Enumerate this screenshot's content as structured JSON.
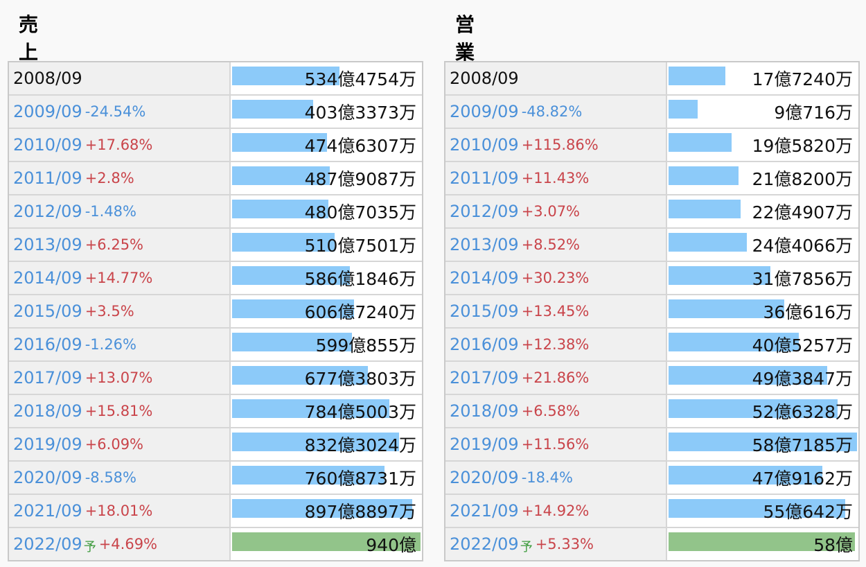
{
  "panels": [
    {
      "title": "売上高",
      "chart_data": {
        "type": "bar",
        "orientation": "horizontal",
        "title": "売上高",
        "unit": "億円",
        "highlight_last_as_forecast": true,
        "colors": {
          "actual": "#8ccaf9",
          "forecast": "#92c48a"
        },
        "rows": [
          {
            "year": "2008/09",
            "change": "",
            "forecast_mark": "",
            "value": 534.4754,
            "label": "534億4754万"
          },
          {
            "year": "2009/09",
            "change": "-24.54%",
            "forecast_mark": "",
            "value": 403.3373,
            "label": "403億3373万"
          },
          {
            "year": "2010/09",
            "change": "+17.68%",
            "forecast_mark": "",
            "value": 474.6307,
            "label": "474億6307万"
          },
          {
            "year": "2011/09",
            "change": "+2.8%",
            "forecast_mark": "",
            "value": 487.9087,
            "label": "487億9087万"
          },
          {
            "year": "2012/09",
            "change": "-1.48%",
            "forecast_mark": "",
            "value": 480.7035,
            "label": "480億7035万"
          },
          {
            "year": "2013/09",
            "change": "+6.25%",
            "forecast_mark": "",
            "value": 510.7501,
            "label": "510億7501万"
          },
          {
            "year": "2014/09",
            "change": "+14.77%",
            "forecast_mark": "",
            "value": 586.1846,
            "label": "586億1846万"
          },
          {
            "year": "2015/09",
            "change": "+3.5%",
            "forecast_mark": "",
            "value": 606.724,
            "label": "606億7240万"
          },
          {
            "year": "2016/09",
            "change": "-1.26%",
            "forecast_mark": "",
            "value": 599.0855,
            "label": "599億855万"
          },
          {
            "year": "2017/09",
            "change": "+13.07%",
            "forecast_mark": "",
            "value": 677.3803,
            "label": "677億3803万"
          },
          {
            "year": "2018/09",
            "change": "+15.81%",
            "forecast_mark": "",
            "value": 784.5003,
            "label": "784億5003万"
          },
          {
            "year": "2019/09",
            "change": "+6.09%",
            "forecast_mark": "",
            "value": 832.3024,
            "label": "832億3024万"
          },
          {
            "year": "2020/09",
            "change": "-8.58%",
            "forecast_mark": "",
            "value": 760.8731,
            "label": "760億8731万"
          },
          {
            "year": "2021/09",
            "change": "+18.01%",
            "forecast_mark": "",
            "value": 897.8897,
            "label": "897億8897万"
          },
          {
            "year": "2022/09",
            "change": "+4.69%",
            "forecast_mark": "予",
            "value": 940,
            "label": "940億"
          }
        ]
      }
    },
    {
      "title": "営業利益",
      "chart_data": {
        "type": "bar",
        "orientation": "horizontal",
        "title": "営業利益",
        "unit": "億円",
        "highlight_last_as_forecast": true,
        "colors": {
          "actual": "#8ccaf9",
          "forecast": "#92c48a"
        },
        "rows": [
          {
            "year": "2008/09",
            "change": "",
            "forecast_mark": "",
            "value": 17.724,
            "label": "17億7240万"
          },
          {
            "year": "2009/09",
            "change": "-48.82%",
            "forecast_mark": "",
            "value": 9.0716,
            "label": "9億716万"
          },
          {
            "year": "2010/09",
            "change": "+115.86%",
            "forecast_mark": "",
            "value": 19.582,
            "label": "19億5820万"
          },
          {
            "year": "2011/09",
            "change": "+11.43%",
            "forecast_mark": "",
            "value": 21.82,
            "label": "21億8200万"
          },
          {
            "year": "2012/09",
            "change": "+3.07%",
            "forecast_mark": "",
            "value": 22.4907,
            "label": "22億4907万"
          },
          {
            "year": "2013/09",
            "change": "+8.52%",
            "forecast_mark": "",
            "value": 24.4066,
            "label": "24億4066万"
          },
          {
            "year": "2014/09",
            "change": "+30.23%",
            "forecast_mark": "",
            "value": 31.7856,
            "label": "31億7856万"
          },
          {
            "year": "2015/09",
            "change": "+13.45%",
            "forecast_mark": "",
            "value": 36.0616,
            "label": "36億616万"
          },
          {
            "year": "2016/09",
            "change": "+12.38%",
            "forecast_mark": "",
            "value": 40.5257,
            "label": "40億5257万"
          },
          {
            "year": "2017/09",
            "change": "+21.86%",
            "forecast_mark": "",
            "value": 49.3847,
            "label": "49億3847万"
          },
          {
            "year": "2018/09",
            "change": "+6.58%",
            "forecast_mark": "",
            "value": 52.6328,
            "label": "52億6328万"
          },
          {
            "year": "2019/09",
            "change": "+11.56%",
            "forecast_mark": "",
            "value": 58.7185,
            "label": "58億7185万"
          },
          {
            "year": "2020/09",
            "change": "-18.4%",
            "forecast_mark": "",
            "value": 47.9162,
            "label": "47億9162万"
          },
          {
            "year": "2021/09",
            "change": "+14.92%",
            "forecast_mark": "",
            "value": 55.0642,
            "label": "55億642万"
          },
          {
            "year": "2022/09",
            "change": "+5.33%",
            "forecast_mark": "予",
            "value": 58,
            "label": "58億"
          }
        ]
      }
    }
  ]
}
